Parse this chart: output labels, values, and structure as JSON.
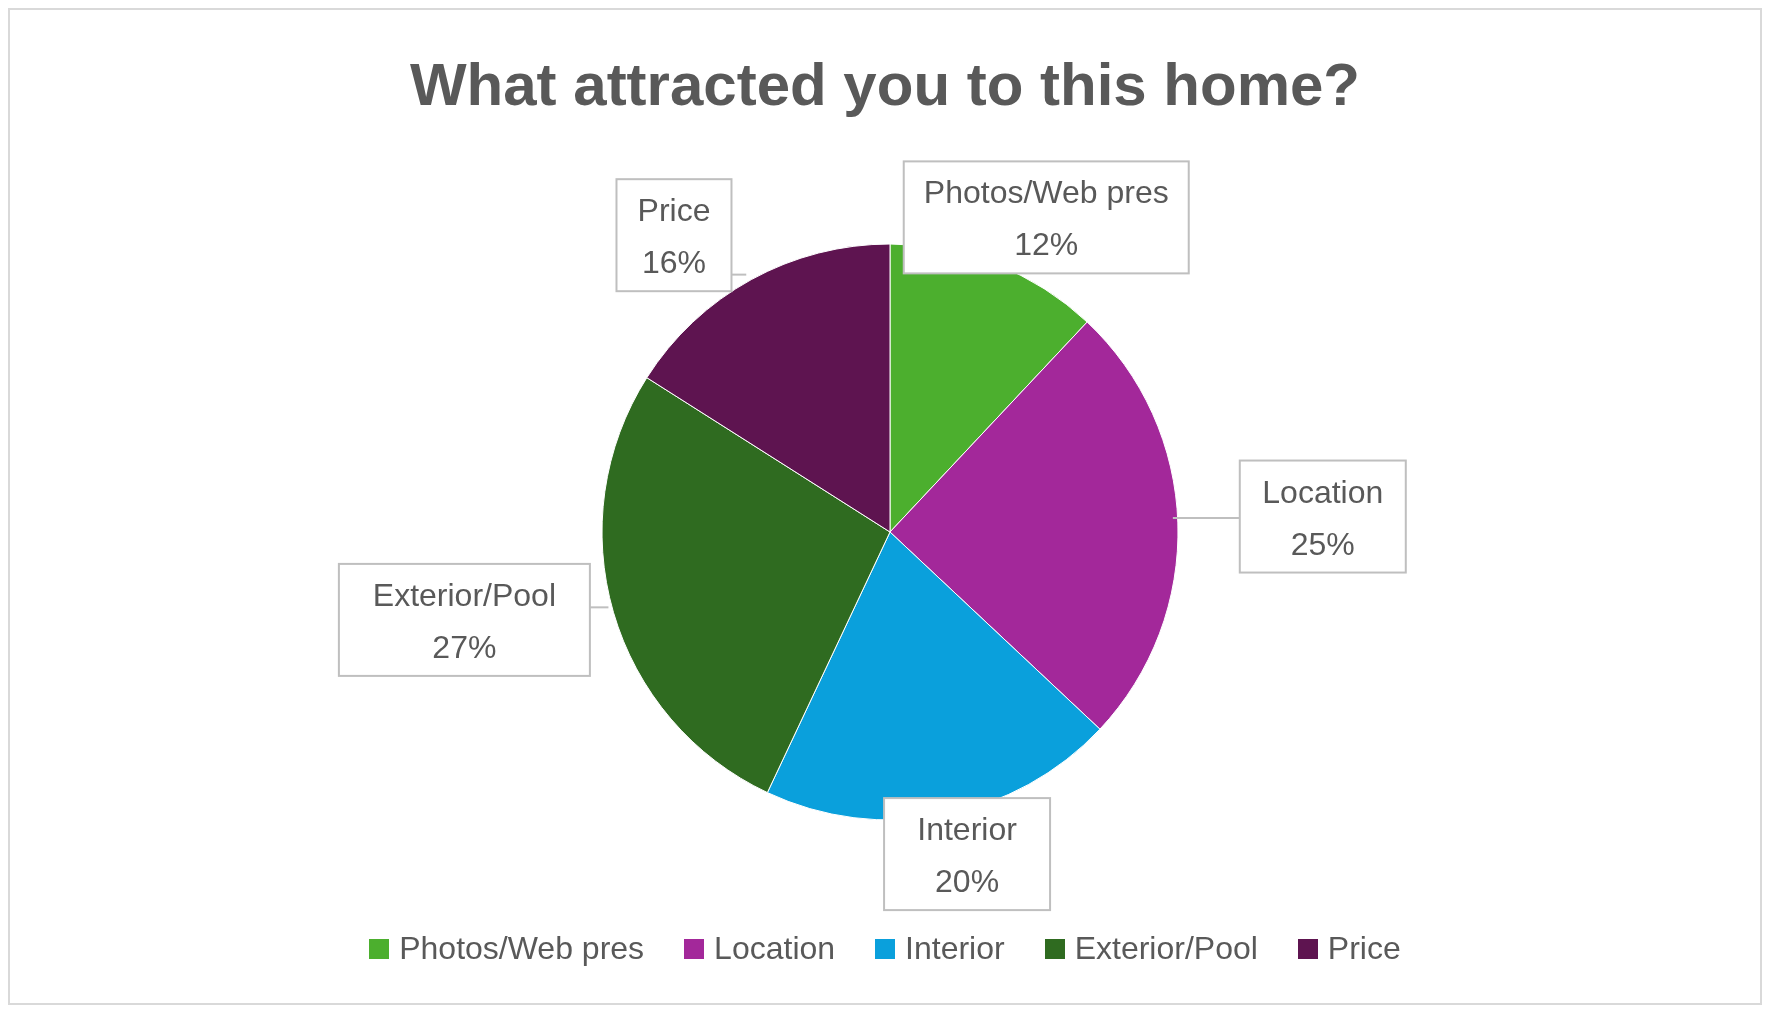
{
  "chart_data": {
    "type": "pie",
    "title": "What attracted you to this home?",
    "categories": [
      "Photos/Web pres",
      "Location",
      "Interior",
      "Exterior/Pool",
      "Price"
    ],
    "values": [
      12,
      25,
      20,
      27,
      16
    ],
    "value_labels": [
      "12%",
      "25%",
      "20%",
      "27%",
      "16%"
    ],
    "colors": [
      "#4caf2e",
      "#a3289a",
      "#0aa0dc",
      "#2f6b20",
      "#5e1450"
    ],
    "legend": "bottom"
  }
}
